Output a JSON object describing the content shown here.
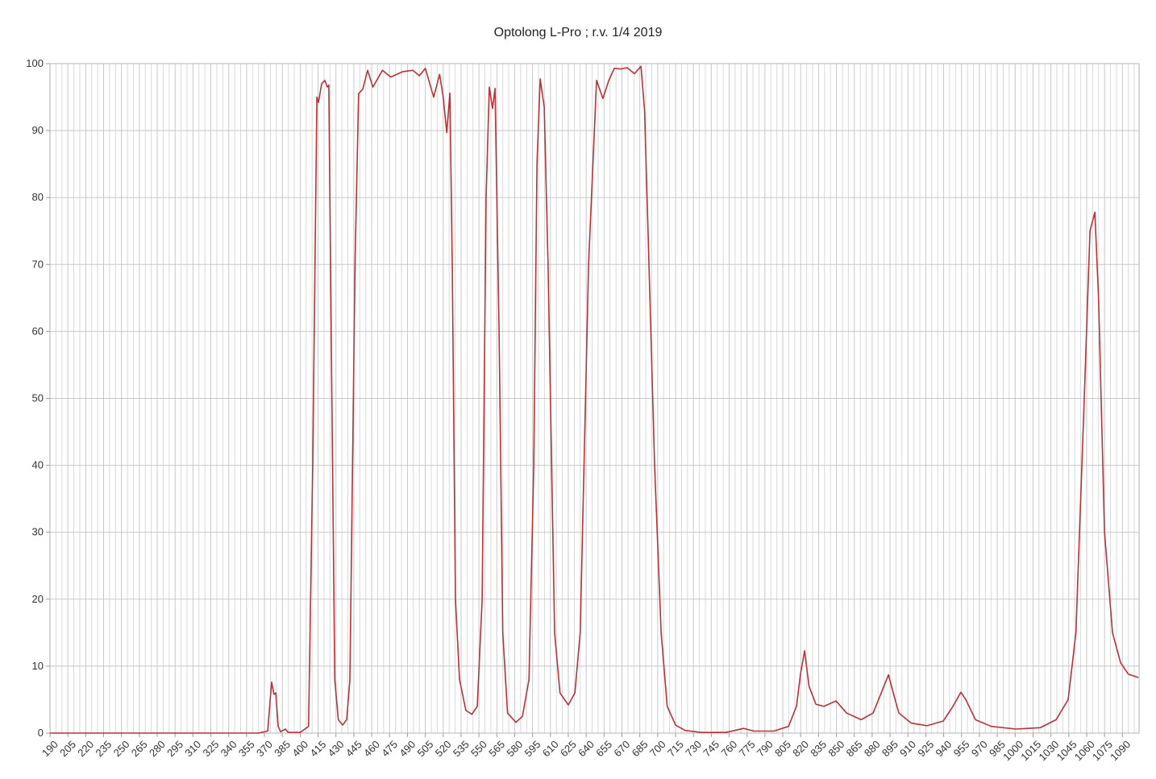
{
  "chart_data": {
    "type": "line",
    "title": "Optolong L-Pro ; r.v. 1/4 2019",
    "x": [
      190,
      365,
      372.7,
      376,
      378,
      379.5,
      381.5,
      383.5,
      387.5,
      390,
      400,
      407,
      410.5,
      414,
      415.3,
      418,
      420.7,
      422.7,
      424,
      426,
      429,
      432,
      435.6,
      439,
      441.7,
      446,
      449,
      452.5,
      456.6,
      461,
      469,
      476,
      486,
      494.5,
      500,
      505,
      512,
      517,
      520,
      523,
      525.6,
      527.6,
      530.3,
      533.7,
      539,
      544,
      548.6,
      552.7,
      556,
      558.7,
      561.4,
      563.5,
      566.9,
      570,
      574,
      581,
      586.5,
      592,
      596,
      598.7,
      601.4,
      604.8,
      608,
      613.5,
      618,
      625,
      630.5,
      635,
      642,
      648.7,
      654,
      659,
      663.6,
      669,
      674.4,
      680.5,
      686,
      689,
      692.7,
      697.4,
      702.9,
      708,
      715,
      723,
      736.7,
      757,
      765,
      772,
      780.7,
      797.6,
      809.8,
      816.5,
      820,
      823.3,
      827,
      832.8,
      839.5,
      849.7,
      858.5,
      870.7,
      880.8,
      887.6,
      893.7,
      897.7,
      902.4,
      912.6,
      926,
      939.7,
      947.8,
      954.5,
      958.6,
      966.7,
      980,
      1000.6,
      1021,
      1034.4,
      1044.5,
      1051,
      1058,
      1062.8,
      1066.9,
      1070,
      1075,
      1081.7,
      1088.5,
      1095,
      1103.4
    ],
    "series": [
      {
        "color": "#b83236",
        "values": [
          0,
          0,
          0.3,
          7.6,
          5.8,
          6,
          1,
          0.2,
          0.6,
          0.1,
          0.1,
          1,
          40,
          95,
          94.2,
          97,
          97.5,
          96.5,
          96.8,
          60,
          8,
          2,
          1.2,
          2,
          8,
          70,
          95.5,
          96.2,
          99,
          96.5,
          99,
          98,
          98.8,
          99,
          98.2,
          99.3,
          95,
          98.4,
          95,
          89.7,
          95.6,
          70,
          20,
          8,
          3.4,
          2.8,
          4,
          20,
          80,
          96.5,
          93.3,
          96.3,
          60,
          15,
          3,
          1.6,
          2.5,
          8,
          40,
          85,
          97.7,
          93.5,
          70,
          15,
          6,
          4.2,
          6,
          15,
          70,
          97.5,
          94.8,
          97.5,
          99.3,
          99.2,
          99.4,
          98.5,
          99.6,
          93,
          70,
          40,
          15,
          4,
          1.2,
          0.4,
          0.1,
          0.1,
          0.4,
          0.7,
          0.3,
          0.3,
          1,
          4,
          9,
          12.3,
          7,
          4.3,
          4,
          4.8,
          3,
          2,
          3,
          6,
          8.7,
          6,
          3,
          1.5,
          1.1,
          1.8,
          4,
          6.1,
          5,
          2,
          1,
          0.6,
          0.8,
          2,
          5,
          15,
          50,
          75,
          77.8,
          65,
          30,
          15,
          10.5,
          8.8,
          8.3
        ]
      }
    ],
    "xlim": [
      190,
      1104
    ],
    "xticks": [
      190,
      205,
      220,
      235,
      250,
      265,
      280,
      295,
      310,
      325,
      340,
      355,
      370,
      385,
      400,
      415,
      430,
      445,
      460,
      475,
      490,
      505,
      520,
      535,
      550,
      565,
      580,
      595,
      610,
      625,
      640,
      655,
      670,
      685,
      700,
      715,
      730,
      745,
      760,
      775,
      790,
      805,
      820,
      835,
      850,
      865,
      880,
      895,
      910,
      925,
      940,
      955,
      970,
      985,
      1000,
      1015,
      1030,
      1045,
      1060,
      1075,
      1090
    ],
    "ylim": [
      0,
      100
    ],
    "yticks": [
      0,
      10,
      20,
      30,
      40,
      50,
      60,
      70,
      80,
      90,
      100
    ],
    "grid": true
  }
}
